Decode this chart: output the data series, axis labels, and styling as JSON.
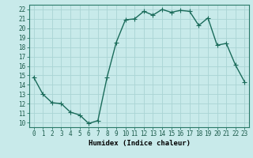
{
  "x": [
    0,
    1,
    2,
    3,
    4,
    5,
    6,
    7,
    8,
    9,
    10,
    11,
    12,
    13,
    14,
    15,
    16,
    17,
    18,
    19,
    20,
    21,
    22,
    23
  ],
  "y": [
    14.8,
    13.0,
    12.1,
    12.0,
    11.1,
    10.8,
    9.9,
    10.2,
    14.8,
    18.5,
    20.9,
    21.0,
    21.8,
    21.4,
    22.0,
    21.7,
    21.9,
    21.8,
    20.3,
    21.1,
    18.2,
    18.4,
    16.1,
    14.3
  ],
  "line_color": "#1a6b5a",
  "marker": "+",
  "marker_size": 4,
  "bg_color": "#c8eaea",
  "grid_color": "#aad4d4",
  "xlabel": "Humidex (Indice chaleur)",
  "xlim": [
    -0.5,
    23.5
  ],
  "ylim": [
    9.5,
    22.5
  ],
  "yticks": [
    10,
    11,
    12,
    13,
    14,
    15,
    16,
    17,
    18,
    19,
    20,
    21,
    22
  ],
  "xticks": [
    0,
    1,
    2,
    3,
    4,
    5,
    6,
    7,
    8,
    9,
    10,
    11,
    12,
    13,
    14,
    15,
    16,
    17,
    18,
    19,
    20,
    21,
    22,
    23
  ],
  "xlabel_fontsize": 6.5,
  "tick_fontsize": 5.5,
  "line_width": 1.0,
  "markeredgewidth": 0.8
}
